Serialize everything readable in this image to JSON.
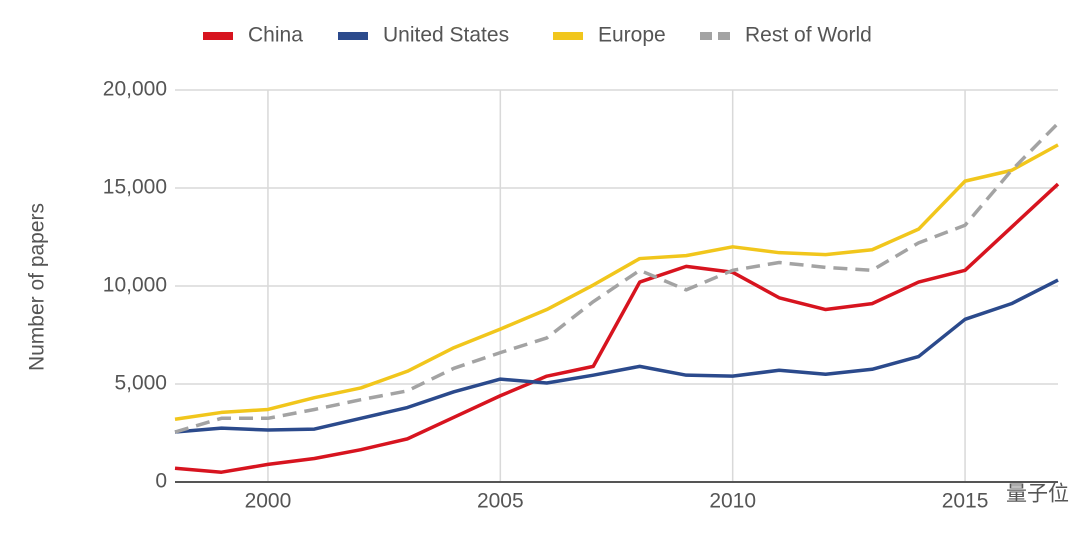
{
  "chart_data": {
    "type": "line",
    "y_label": "Number of papers",
    "x": [
      1998,
      1999,
      2000,
      2001,
      2002,
      2003,
      2004,
      2005,
      2006,
      2007,
      2008,
      2009,
      2010,
      2011,
      2012,
      2013,
      2014,
      2015,
      2016,
      2017
    ],
    "series": [
      {
        "name": "China",
        "color": "#d7141f",
        "values": [
          700,
          500,
          900,
          1200,
          1650,
          2200,
          3300,
          4400,
          5400,
          5900,
          10200,
          11000,
          10700,
          9400,
          8800,
          9100,
          10200,
          10800,
          13000,
          15200
        ]
      },
      {
        "name": "United States",
        "color": "#2b4a8c",
        "values": [
          2550,
          2750,
          2650,
          2700,
          3250,
          3800,
          4600,
          5250,
          5050,
          5450,
          5900,
          5450,
          5400,
          5700,
          5500,
          5750,
          6400,
          8300,
          9100,
          10300
        ]
      },
      {
        "name": "Europe",
        "color": "#f1c61c",
        "values": [
          3200,
          3550,
          3700,
          4300,
          4800,
          5650,
          6850,
          7800,
          8800,
          10050,
          11400,
          11550,
          12000,
          11700,
          11600,
          11850,
          12900,
          15350,
          15900,
          17200
        ]
      },
      {
        "name": "Rest of World",
        "color": "#a3a3a3",
        "dashed": true,
        "values": [
          2550,
          3250,
          3250,
          3700,
          4200,
          4650,
          5800,
          6600,
          7350,
          9200,
          10800,
          9800,
          10800,
          11200,
          10950,
          10800,
          12200,
          13100,
          15900,
          18300
        ]
      }
    ],
    "xlim": [
      1998,
      2017
    ],
    "xticks": [
      2000,
      2005,
      2010,
      2015
    ],
    "ylim": [
      0,
      20000
    ],
    "yticks": [
      0,
      {
        "value": 5000,
        "label": "5,000"
      },
      {
        "value": 10000,
        "label": "10,000"
      },
      {
        "value": 15000,
        "label": "15,000"
      },
      {
        "value": 20000,
        "label": "20,000"
      }
    ],
    "grid": true,
    "legend": "top",
    "watermark": "量子位"
  }
}
